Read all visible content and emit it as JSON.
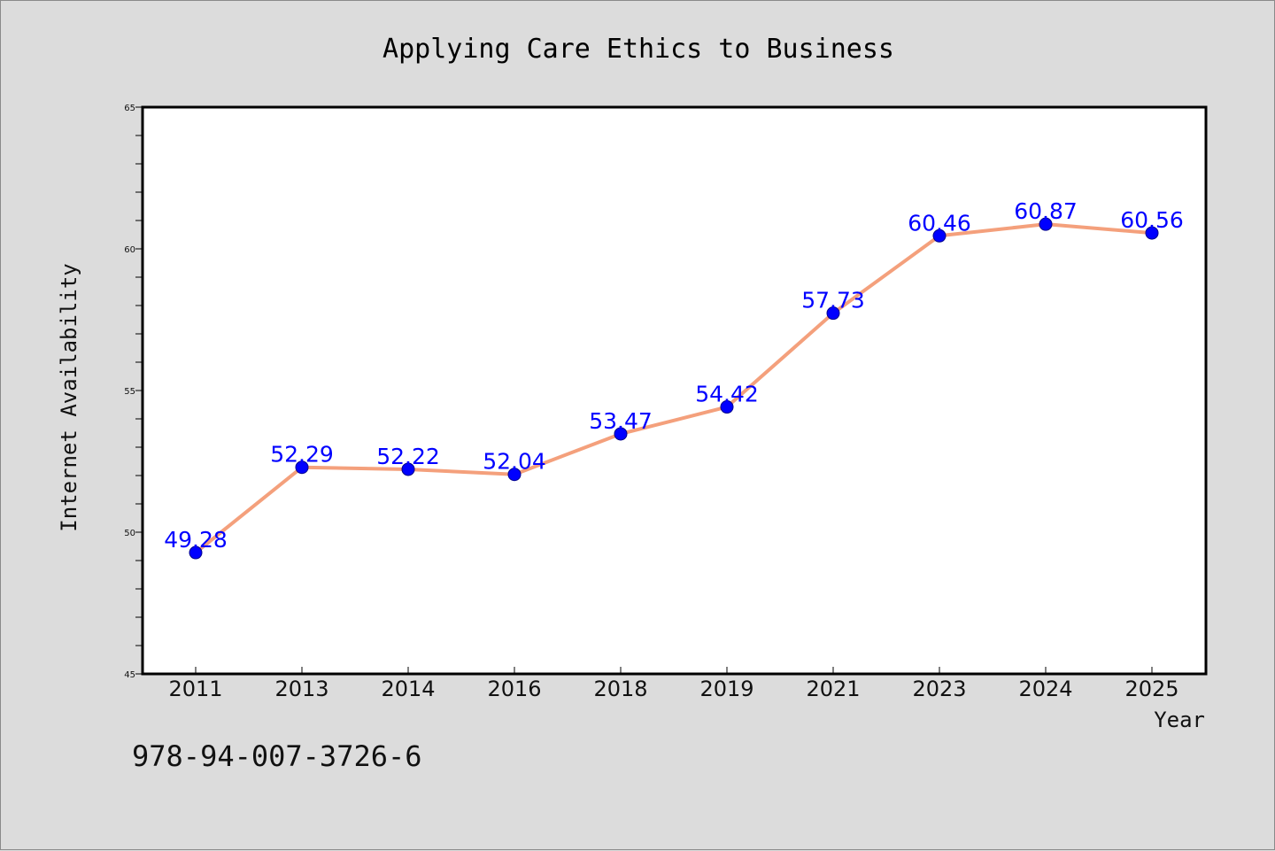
{
  "chart_data": {
    "type": "line",
    "title": "Applying Care Ethics to Business",
    "xlabel": "Year",
    "ylabel": "Internet Availability",
    "categories": [
      "2011",
      "2013",
      "2014",
      "2016",
      "2018",
      "2019",
      "2021",
      "2023",
      "2024",
      "2025"
    ],
    "series": [
      {
        "values": [
          49.28,
          52.29,
          52.22,
          52.04,
          53.47,
          54.42,
          57.73,
          60.46,
          60.87,
          60.56
        ],
        "data_labels": [
          "49.28",
          "52.29",
          "52.22",
          "52.04",
          "53.47",
          "54.42",
          "57.73",
          "60.46",
          "60.87",
          "60.56"
        ]
      }
    ],
    "ylim": [
      45,
      65
    ],
    "yticks": [
      "45",
      "50",
      "55",
      "60",
      "65"
    ],
    "grid": false,
    "line_color": "#f4a07c",
    "marker_color": "#0000ff",
    "label_color": "#0000ff"
  },
  "annotation": "978-94-007-3726-6"
}
